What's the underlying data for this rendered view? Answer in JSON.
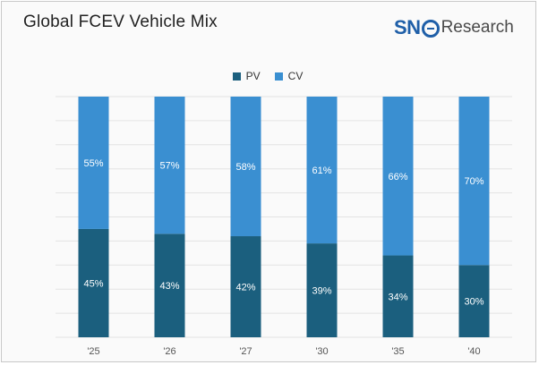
{
  "title": "Global FCEV Vehicle Mix",
  "logo": {
    "sne": "SN",
    "rest": "Research"
  },
  "colors": {
    "PV": "#1b5f7e",
    "CV": "#3a8fd1",
    "grid": "#e3e3e3"
  },
  "chart_data": {
    "type": "bar",
    "stacked": true,
    "categories": [
      "'25",
      "'26",
      "'27",
      "'30",
      "'35",
      "'40"
    ],
    "series": [
      {
        "name": "PV",
        "values": [
          45,
          43,
          42,
          39,
          34,
          30
        ]
      },
      {
        "name": "CV",
        "values": [
          55,
          57,
          58,
          61,
          66,
          70
        ]
      }
    ],
    "ylim": [
      0,
      100
    ],
    "grid": true,
    "legend_position": "top-center"
  }
}
